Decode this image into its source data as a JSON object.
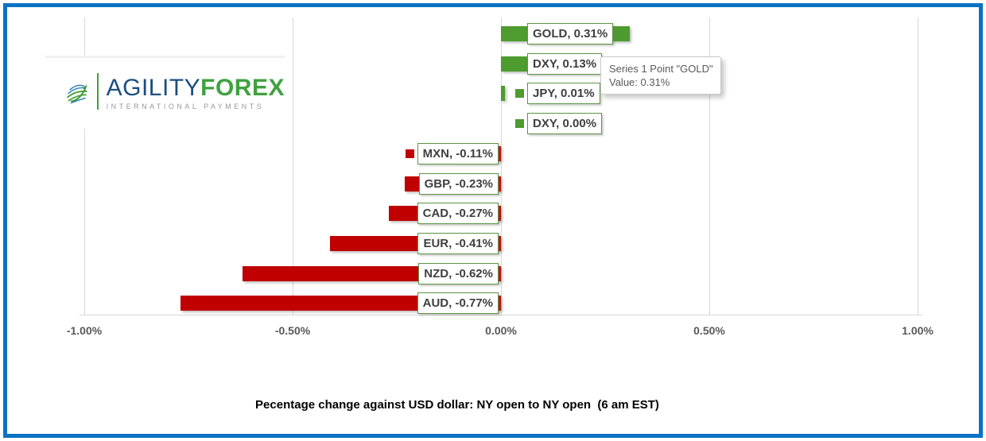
{
  "logo": {
    "brand_primary": "AGILITY",
    "brand_secondary": "FOREX",
    "tagline": "INTERNATIONAL PAYMENTS"
  },
  "tooltip": {
    "line1": "Series 1 Point \"GOLD\"",
    "line2": "Value: 0.31%"
  },
  "chart_data": {
    "type": "bar",
    "orientation": "horizontal",
    "title": "Pecentage change against USD dollar: NY open to NY open  (6 am EST)",
    "series_name": "Series 1",
    "categories": [
      "GOLD",
      "DXY",
      "JPY",
      "DXY",
      "MXN",
      "GBP",
      "CAD",
      "EUR",
      "NZD",
      "AUD"
    ],
    "values": [
      0.31,
      0.13,
      0.01,
      0.0,
      -0.11,
      -0.23,
      -0.27,
      -0.41,
      -0.62,
      -0.77
    ],
    "unit": "percent",
    "data_labels": [
      "GOLD, 0.31%",
      "DXY, 0.13%",
      "JPY, 0.01%",
      "DXY, 0.00%",
      "MXN, -0.11%",
      "GBP, -0.23%",
      "CAD, -0.27%",
      "EUR, -0.41%",
      "NZD, -0.62%",
      "AUD, -0.77%"
    ],
    "x_ticks": [
      "-1.00%",
      "-0.50%",
      "0.00%",
      "0.50%",
      "1.00%"
    ],
    "x_tick_values": [
      -1.0,
      -0.5,
      0.0,
      0.5,
      1.0
    ],
    "xlim": [
      -1.0,
      1.0
    ],
    "gridlines": true,
    "legend_position": "none",
    "positive_color": "#4e9b30",
    "negative_color": "#c00000",
    "label_border_color": "#5e9444",
    "label_text_color": "#3f3f3f",
    "axis_text_color": "#595959",
    "frame_color": "#0b72c3"
  }
}
